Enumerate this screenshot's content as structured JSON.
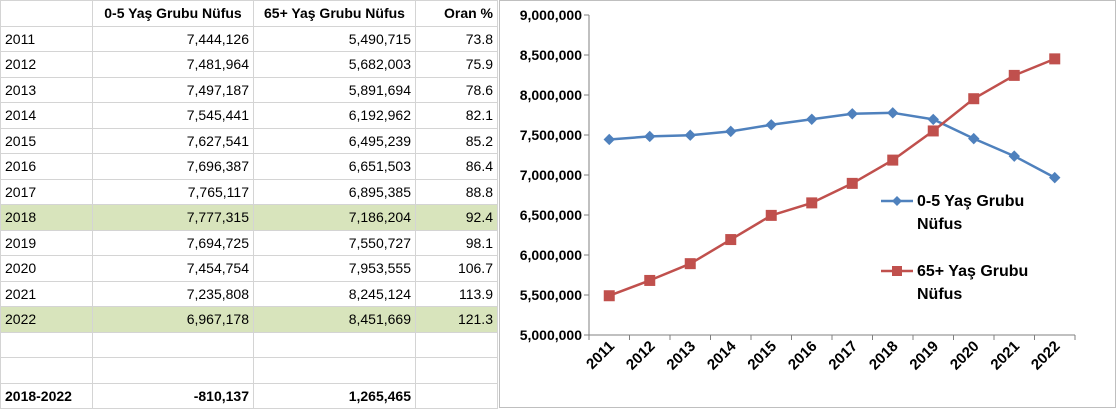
{
  "table": {
    "headers": [
      "",
      "0-5 Yaş Grubu Nüfus",
      "65+ Yaş Grubu Nüfus",
      "Oran %"
    ],
    "rows": [
      [
        "2011",
        "7,444,126",
        "5,490,715",
        "73.8"
      ],
      [
        "2012",
        "7,481,964",
        "5,682,003",
        "75.9"
      ],
      [
        "2013",
        "7,497,187",
        "5,891,694",
        "78.6"
      ],
      [
        "2014",
        "7,545,441",
        "6,192,962",
        "82.1"
      ],
      [
        "2015",
        "7,627,541",
        "6,495,239",
        "85.2"
      ],
      [
        "2016",
        "7,696,387",
        "6,651,503",
        "86.4"
      ],
      [
        "2017",
        "7,765,117",
        "6,895,385",
        "88.8"
      ],
      [
        "2018",
        "7,777,315",
        "7,186,204",
        "92.4"
      ],
      [
        "2019",
        "7,694,725",
        "7,550,727",
        "98.1"
      ],
      [
        "2020",
        "7,454,754",
        "7,953,555",
        "106.7"
      ],
      [
        "2021",
        "7,235,808",
        "8,245,124",
        "113.9"
      ],
      [
        "2022",
        "6,967,178",
        "8,451,669",
        "121.3"
      ]
    ],
    "highlighted_years": [
      "2018",
      "2022"
    ],
    "highlight_color": "#d8e4bc",
    "total": [
      "2018-2022",
      "-810,137",
      "1,265,465",
      ""
    ]
  },
  "chart_data": {
    "type": "line",
    "title": "",
    "xlabel": "",
    "ylabel": "",
    "categories": [
      "2011",
      "2012",
      "2013",
      "2014",
      "2015",
      "2016",
      "2017",
      "2018",
      "2019",
      "2020",
      "2021",
      "2022"
    ],
    "series": [
      {
        "name": "0-5 Yaş Grubu Nüfus",
        "legend_lines": [
          "0-5 Yaş Grubu",
          "Nüfus"
        ],
        "color": "#4f81bd",
        "marker": "diamond",
        "values": [
          7444126,
          7481964,
          7497187,
          7545441,
          7627541,
          7696387,
          7765117,
          7777315,
          7694725,
          7454754,
          7235808,
          6967178
        ]
      },
      {
        "name": "65+ Yaş Grubu Nüfus",
        "legend_lines": [
          "65+ Yaş Grubu",
          "Nüfus"
        ],
        "color": "#c0504d",
        "marker": "square",
        "values": [
          5490715,
          5682003,
          5891694,
          6192962,
          6495239,
          6651503,
          6895385,
          7186204,
          7550727,
          7953555,
          8245124,
          8451669
        ]
      }
    ],
    "ylim": [
      5000000,
      9000000
    ],
    "yticks": [
      5000000,
      5500000,
      6000000,
      6500000,
      7000000,
      7500000,
      8000000,
      8500000,
      9000000
    ],
    "ytick_labels": [
      "5,000,000",
      "5,500,000",
      "6,000,000",
      "6,500,000",
      "7,000,000",
      "7,500,000",
      "8,000,000",
      "8,500,000",
      "9,000,000"
    ],
    "grid": false,
    "legend_position": "right"
  }
}
